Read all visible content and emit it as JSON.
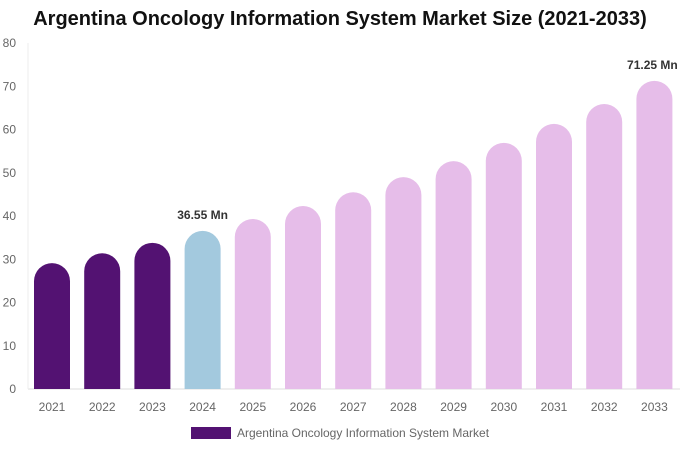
{
  "chart_data": {
    "type": "bar",
    "title": "Argentina Oncology Information System Market Size (2021-2033)",
    "categories": [
      "2021",
      "2022",
      "2023",
      "2024",
      "2025",
      "2026",
      "2027",
      "2028",
      "2029",
      "2030",
      "2031",
      "2032",
      "2033"
    ],
    "series": [
      {
        "name": "Argentina Oncology Information System Market",
        "values": [
          29.1,
          31.4,
          33.8,
          36.55,
          39.3,
          42.3,
          45.5,
          49.0,
          52.7,
          56.9,
          61.3,
          65.9,
          71.25
        ]
      }
    ],
    "data_labels": {
      "3": "36.55 Mn",
      "12": "71.25 Mn"
    },
    "ylim": [
      0,
      80
    ],
    "yticks": [
      0,
      10,
      20,
      30,
      40,
      50,
      60,
      70,
      80
    ],
    "grid": false,
    "legend": "bottom",
    "colors": {
      "historical": "#531272",
      "base": "#a3c9de",
      "forecast": "#e6bde9"
    }
  }
}
